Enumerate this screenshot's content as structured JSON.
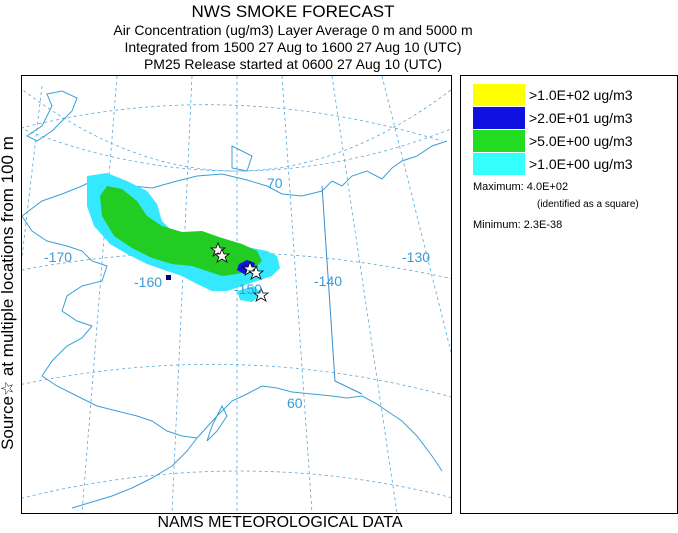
{
  "header": {
    "title": "NWS SMOKE FORECAST",
    "line2": "Air Concentration (ug/m3) Layer Average    0 m and  5000 m",
    "line3": "Integrated from 1500 27 Aug to 1600 27 Aug 10 (UTC)",
    "line4": "PM25 Release started at 0600 27 Aug 10 (UTC)"
  },
  "side_label": "Source☆ at multiple locations  from  100 m",
  "bottom_label": "NAMS METEOROLOGICAL DATA",
  "map": {
    "lon_labels": [
      "-170",
      "-160",
      "-150",
      "-140",
      "-130"
    ],
    "lat_labels": [
      "70",
      "60"
    ],
    "colors": {
      "land_outline": "#3aa0d8",
      "grid": "#5aa8d8",
      "border": "#3a8fd0",
      "level1": "#33e8ff",
      "level2": "#22cc22",
      "level3": "#1010e0",
      "level4": "#ffff00"
    }
  },
  "legend": {
    "entries": [
      {
        "label": ">1.0E+02 ug/m3",
        "color": "#ffff00"
      },
      {
        "label": ">2.0E+01 ug/m3",
        "color": "#1010e0"
      },
      {
        "label": ">5.0E+00 ug/m3",
        "color": "#22dd22"
      },
      {
        "label": ">1.0E+00 ug/m3",
        "color": "#33ffff"
      }
    ],
    "maximum": "Maximum: 4.0E+02",
    "max_note": "(identified as a square)",
    "minimum": "Minimum: 2.3E-38"
  }
}
